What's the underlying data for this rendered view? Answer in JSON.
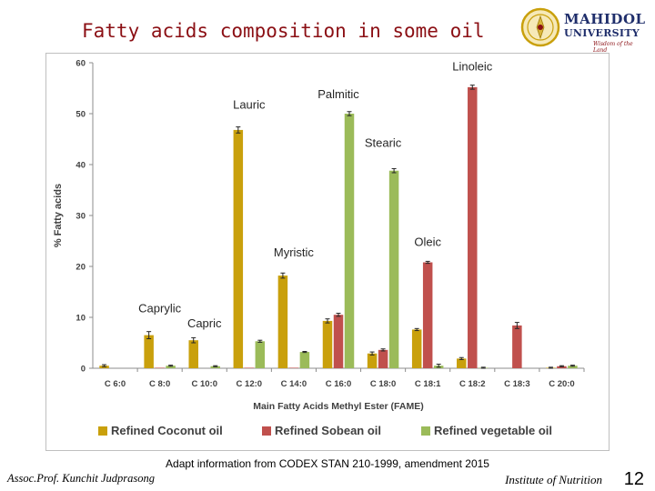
{
  "slide": {
    "title": "Fatty acids composition in some oil",
    "source_note": "Adapt information from CODEX STAN 210-1999, amendment 2015",
    "author": "Assoc.Prof. Kunchit Judprasong",
    "institute": "Institute of Nutrition",
    "page_number": "12"
  },
  "logo": {
    "word1": "MAHIDOL",
    "word2": "UNIVERSITY",
    "tagline": "Wisdom of the Land"
  },
  "chart_data": {
    "type": "bar",
    "xlabel": "Main Fatty Acids Methyl Ester (FAME)",
    "ylabel": "% Fatty acids",
    "ylim": [
      0,
      60
    ],
    "yticks": [
      0,
      10,
      20,
      30,
      40,
      50,
      60
    ],
    "grid": false,
    "legend_position": "bottom",
    "categories": [
      "C 6:0",
      "C 8:0",
      "C 10:0",
      "C 12:0",
      "C 14:0",
      "C 16:0",
      "C 18:0",
      "C 18:1",
      "C 18:2",
      "C 18:3",
      "C 20:0"
    ],
    "series": [
      {
        "name": "Refined Coconut oil",
        "color": "#c9a00c",
        "values": [
          0.5,
          6.5,
          5.5,
          46.8,
          18.2,
          9.3,
          2.9,
          7.6,
          1.9,
          0.0,
          0.1
        ],
        "errors": [
          0.2,
          0.7,
          0.5,
          0.6,
          0.5,
          0.4,
          0.3,
          0.2,
          0.2,
          0,
          0.1
        ]
      },
      {
        "name": "Refined Sobean oil",
        "color": "#c0504d",
        "values": [
          0.0,
          0.1,
          0.0,
          0.1,
          0.1,
          10.5,
          3.6,
          20.8,
          55.2,
          8.4,
          0.4
        ],
        "errors": [
          0,
          0,
          0,
          0,
          0,
          0.3,
          0.2,
          0.2,
          0.4,
          0.6,
          0.1
        ]
      },
      {
        "name": "Refined vegetable oil",
        "color": "#9bbb59",
        "values": [
          0.0,
          0.5,
          0.4,
          5.3,
          3.2,
          50.0,
          38.8,
          0.5,
          0.1,
          0.0,
          0.5
        ],
        "errors": [
          0,
          0.1,
          0.1,
          0.2,
          0.1,
          0.4,
          0.4,
          0.3,
          0.1,
          0,
          0.1
        ]
      }
    ],
    "annotations": [
      {
        "text": "Linoleic",
        "x": "C 18:2",
        "y": 58.5
      },
      {
        "text": "Palmitic",
        "x": "C 16:0",
        "y": 53.0
      },
      {
        "text": "Lauric",
        "x": "C 12:0",
        "y": 51.0
      },
      {
        "text": "Stearic",
        "x": "C 18:0",
        "y": 43.5
      },
      {
        "text": "Oleic",
        "x": "C 18:1",
        "y": 24.0
      },
      {
        "text": "Myristic",
        "x": "C 14:0",
        "y": 22.0
      },
      {
        "text": "Caprylic",
        "x": "C 8:0",
        "y": 11.0
      },
      {
        "text": "Capric",
        "x": "C 10:0",
        "y": 8.0
      }
    ]
  }
}
